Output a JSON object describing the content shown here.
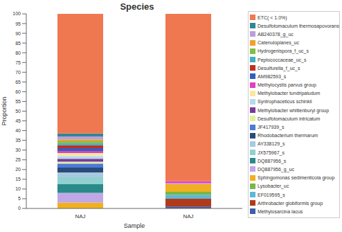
{
  "chart_data": {
    "type": "bar",
    "title": "Species",
    "x_label": "Sample",
    "y_label": "Proportion",
    "categories": [
      "NAJ",
      "NAJ"
    ],
    "stacked": true,
    "legend": "right",
    "grid": false,
    "ylim": [
      0,
      100
    ],
    "yticks": [
      0,
      5,
      10,
      15,
      20,
      25,
      30,
      35,
      40,
      45,
      50,
      55,
      60,
      65,
      70,
      75,
      80,
      85,
      90,
      95,
      100
    ],
    "series": [
      {
        "name": "ETC( < 1.0%)",
        "color": "#f07850",
        "values": [
          61.5,
          86
        ]
      },
      {
        "name": "Desulfotomaculum thermosapovorans",
        "color": "#308890",
        "values": [
          1.5,
          0
        ]
      },
      {
        "name": "AB240378_g_uc",
        "color": "#b8a0e0",
        "values": [
          1.5,
          0
        ]
      },
      {
        "name": "Catenuloplanes_uc",
        "color": "#f0a030",
        "values": [
          1,
          0
        ]
      },
      {
        "name": "Hydrogenispora_f_uc_s",
        "color": "#80c040",
        "values": [
          1,
          0
        ]
      },
      {
        "name": "Peptococcaceae_uc_s",
        "color": "#40b0c0",
        "values": [
          1,
          0
        ]
      },
      {
        "name": "Desulfurella_f_uc_s",
        "color": "#c03020",
        "values": [
          1.5,
          0
        ]
      },
      {
        "name": "AM982593_s",
        "color": "#3060c0",
        "values": [
          1.5,
          0
        ]
      },
      {
        "name": "Methylocystis parvus group",
        "color": "#e040c0",
        "values": [
          1,
          1
        ]
      },
      {
        "name": "Methylobacter tundripaludum",
        "color": "#f8e8a0",
        "values": [
          1.5,
          0
        ]
      },
      {
        "name": "Syntrophaceticus schinkii",
        "color": "#b8d8f0",
        "values": [
          1.5,
          0
        ]
      },
      {
        "name": "Methylobacter whittenburyi group",
        "color": "#7a3a9a",
        "values": [
          1.5,
          0
        ]
      },
      {
        "name": "Desulfotomaculum intricatum",
        "color": "#e0f0a0",
        "values": [
          1,
          0
        ]
      },
      {
        "name": "JF417939_s",
        "color": "#4a7ad8",
        "values": [
          2,
          0
        ]
      },
      {
        "name": "Rhodobacterium thermarum",
        "color": "#2a4a7a",
        "values": [
          2.5,
          0
        ]
      },
      {
        "name": "AY338129_s",
        "color": "#a8c8e0",
        "values": [
          2.5,
          0
        ]
      },
      {
        "name": "JX575967_s",
        "color": "#90d0d0",
        "values": [
          3.5,
          0
        ]
      },
      {
        "name": "DQ887956_s",
        "color": "#2a8a8a",
        "values": [
          4.5,
          0
        ]
      },
      {
        "name": "DQ887956_g_uc",
        "color": "#c0a8e8",
        "values": [
          5,
          0.5
        ]
      },
      {
        "name": "Sphingomonas sedimenticola group",
        "color": "#f0b020",
        "values": [
          3,
          4
        ]
      },
      {
        "name": "Lysobacter_uc",
        "color": "#7ab648",
        "values": [
          0,
          1.5
        ]
      },
      {
        "name": "EF019595_s",
        "color": "#5fb8d8",
        "values": [
          0,
          2
        ]
      },
      {
        "name": "Arthrobacter globiformis group",
        "color": "#b03a1a",
        "values": [
          0,
          4
        ]
      },
      {
        "name": "Methylosarcina lacus",
        "color": "#3a5fa8",
        "values": [
          0,
          1
        ]
      }
    ]
  }
}
